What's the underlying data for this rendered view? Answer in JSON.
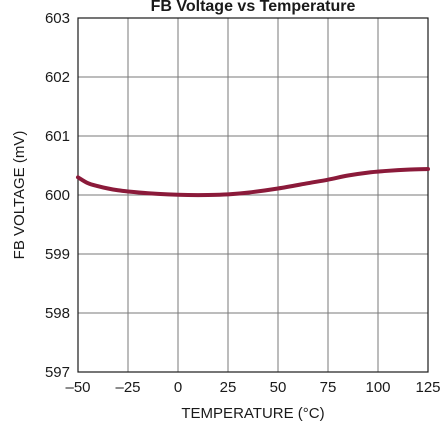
{
  "chart_data": {
    "type": "line",
    "title": "FB Voltage vs Temperature",
    "xlabel": "TEMPERATURE (°C)",
    "ylabel": "FB VOLTAGE (mV)",
    "xlim": [
      -50,
      125
    ],
    "ylim": [
      597,
      603
    ],
    "x_ticks": [
      -50,
      -25,
      0,
      25,
      50,
      75,
      100,
      125
    ],
    "x_tick_labels": [
      "–50",
      "–25",
      "0",
      "25",
      "50",
      "75",
      "100",
      "125"
    ],
    "y_ticks": [
      597,
      598,
      599,
      600,
      601,
      602,
      603
    ],
    "y_tick_labels": [
      "597",
      "598",
      "599",
      "600",
      "601",
      "602",
      "603"
    ],
    "grid": true,
    "series": [
      {
        "color": "#8b1a3a",
        "x": [
          -50,
          -45,
          -40,
          -35,
          -30,
          -25,
          -15,
          -5,
          5,
          15,
          25,
          35,
          50,
          65,
          75,
          85,
          95,
          105,
          115,
          125
        ],
        "y": [
          600.3,
          600.2,
          600.15,
          600.11,
          600.08,
          600.06,
          600.03,
          600.01,
          600.0,
          600.0,
          600.01,
          600.04,
          600.11,
          600.2,
          600.26,
          600.33,
          600.38,
          600.41,
          600.43,
          600.44
        ]
      }
    ]
  }
}
